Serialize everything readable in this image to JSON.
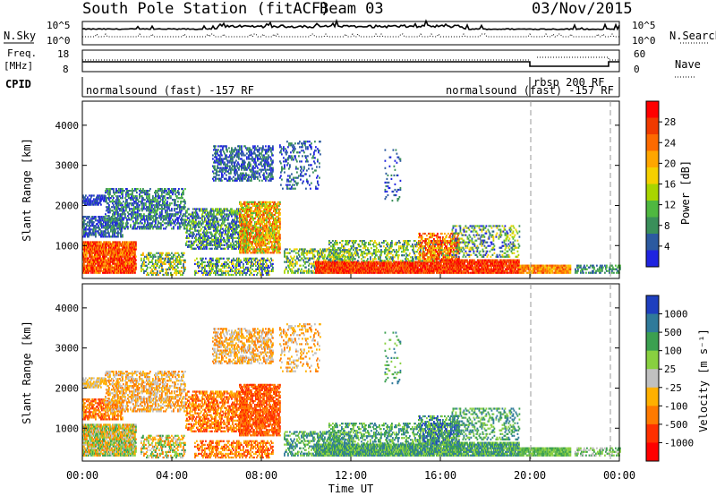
{
  "header": {
    "station": "South Pole Station (fitACF)",
    "beam": "Beam 03",
    "date": "03/Nov/2015"
  },
  "summary_panels": {
    "nsky_label": "N.Sky",
    "nsky_ticks": [
      "10^5",
      "10^0"
    ],
    "nsearch_label": "N.Search",
    "nsearch_ticks": [
      "10^5",
      "10^0"
    ],
    "freq_label": "Freq.",
    "freq_unit": "[MHz]",
    "freq_ticks": [
      "18",
      "8"
    ],
    "nave_label": "Nave",
    "nave_ticks": [
      "60",
      "0"
    ],
    "cpid_label": "CPID",
    "cpid_segments": [
      "normalsound (fast) -157 RF",
      "normalsound (fast) -157 RF",
      "rbsp 200 RF"
    ]
  },
  "power_colorbar": {
    "title": "Power [dB]",
    "ticks": [
      "28",
      "24",
      "20",
      "16",
      "12",
      "8",
      "4"
    ],
    "colors": [
      "#ff0000",
      "#f03a00",
      "#fd6a00",
      "#ffa600",
      "#f5d000",
      "#a8d500",
      "#4fb840",
      "#3a8f5a",
      "#2c5aa0",
      "#1f23e0"
    ]
  },
  "velocity_colorbar": {
    "title": "Velocity [m s⁻¹]",
    "ticks": [
      "1000",
      "500",
      "100",
      "25",
      "-25",
      "-100",
      "-500",
      "-1000"
    ],
    "colors": [
      "#1e3fbf",
      "#2f7a9a",
      "#3ba050",
      "#88d040",
      "#c0c0c0",
      "#ffb000",
      "#ff7a00",
      "#ff3000",
      "#ff0000"
    ]
  },
  "chart_data": [
    {
      "type": "heatmap",
      "title": "Power",
      "ylabel": "Slant Range [km]",
      "xlabel": "",
      "x_range_hours": [
        0,
        24
      ],
      "ylim": [
        180,
        4600
      ],
      "ytick_labels": [
        "1000",
        "2000",
        "3000",
        "4000"
      ],
      "grid": false,
      "dashed_vlines_hours": [
        20.05,
        23.6
      ]
    },
    {
      "type": "heatmap",
      "title": "Velocity",
      "ylabel": "Slant Range [km]",
      "xlabel": "Time UT",
      "x_range_hours": [
        0,
        24
      ],
      "xtick_labels": [
        "00:00",
        "04:00",
        "08:00",
        "12:00",
        "16:00",
        "20:00",
        "00:00"
      ],
      "ylim": [
        180,
        4600
      ],
      "ytick_labels": [
        "1000",
        "2000",
        "3000",
        "4000"
      ],
      "grid": false,
      "dashed_vlines_hours": [
        20.05,
        23.6
      ]
    }
  ]
}
